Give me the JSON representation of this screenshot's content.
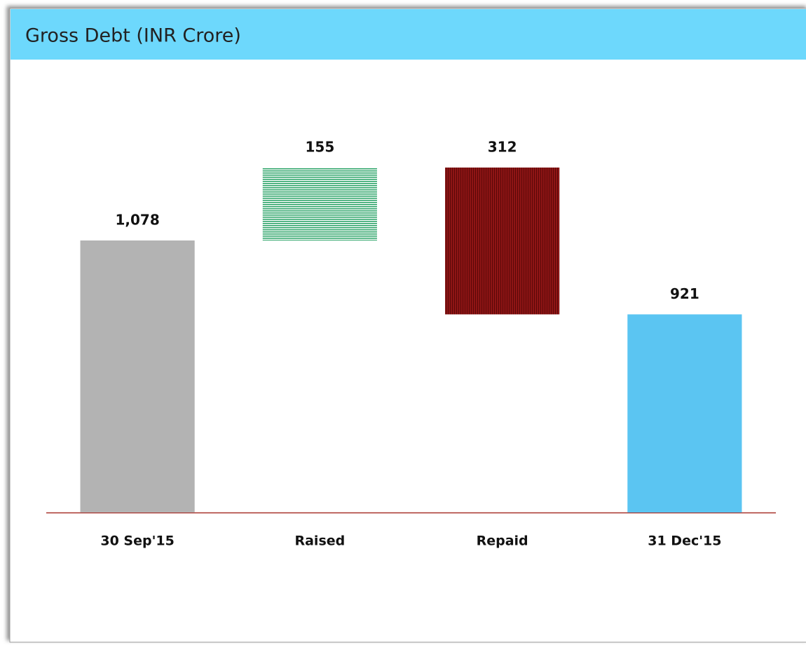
{
  "chart_data": {
    "type": "waterfall",
    "title": "Gross Debt (INR Crore)",
    "categories": [
      "30 Sep'15",
      "Raised",
      "Repaid",
      "31 Dec'15"
    ],
    "values": [
      1078,
      155,
      312,
      921
    ],
    "value_labels": [
      "1,078",
      "155",
      "312",
      "921"
    ],
    "measures": [
      "total",
      "increase",
      "decrease",
      "total"
    ],
    "colors": [
      "#b3b3b3",
      "#2ea56a",
      "#8e1515",
      "#5bc5f2"
    ],
    "patterns": [
      "solid",
      "horizontal-lines",
      "vertical-lines",
      "solid"
    ],
    "ylim": [
      500,
      1300
    ]
  }
}
